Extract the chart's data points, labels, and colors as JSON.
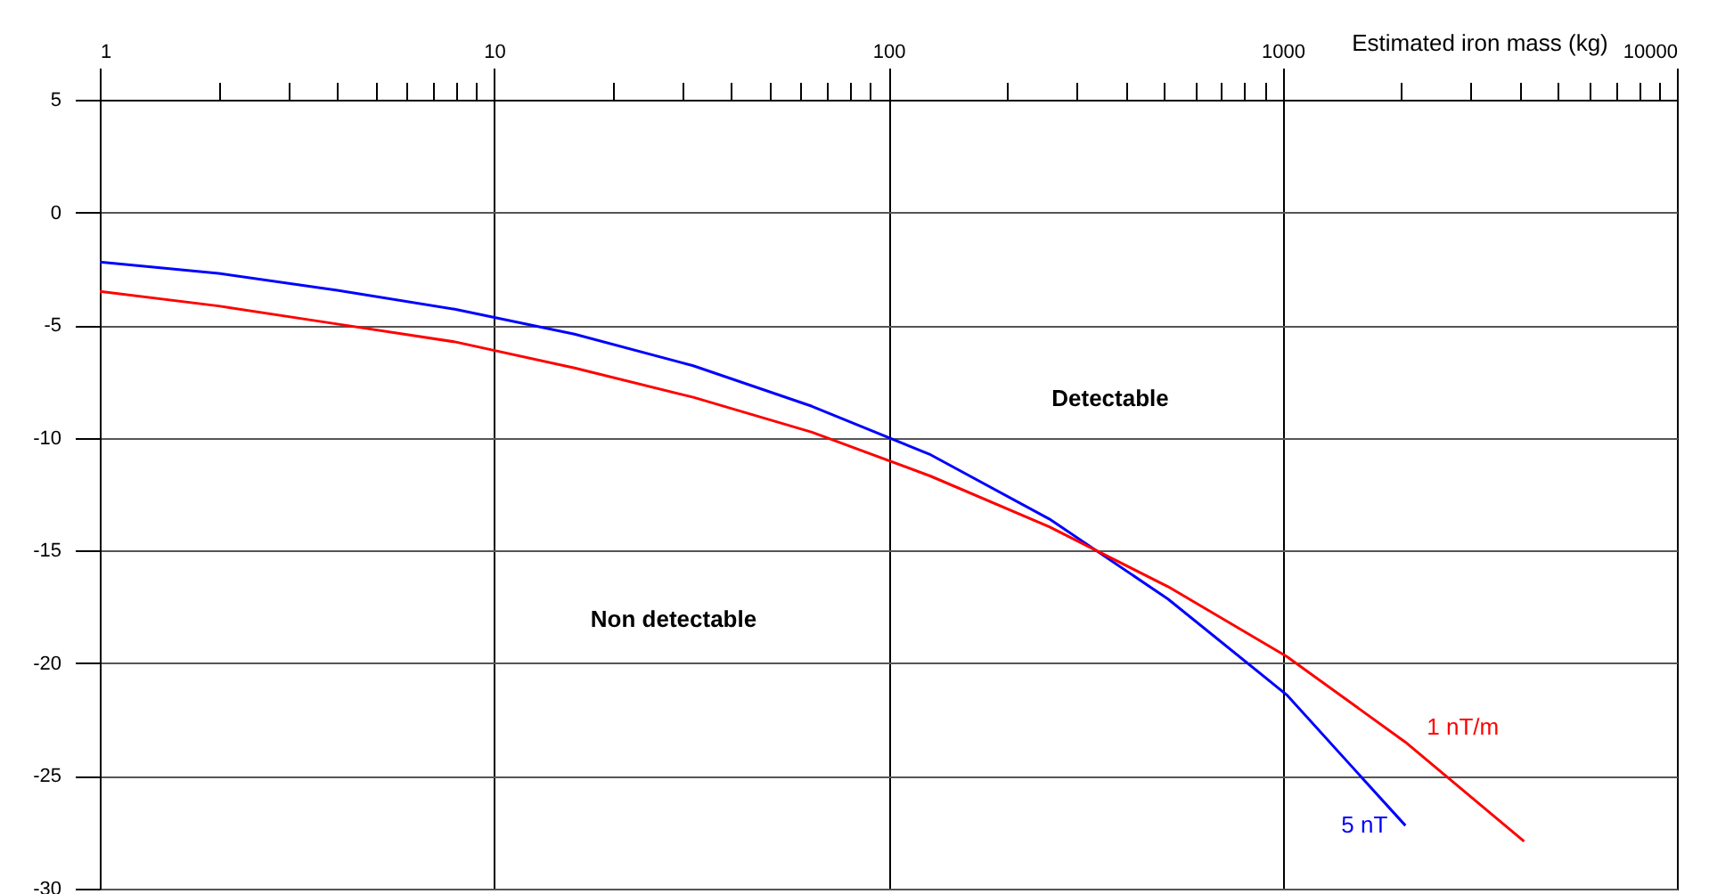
{
  "chart_data": {
    "type": "line",
    "xlabel": "Estimated iron mass (kg)",
    "log": "x",
    "xlim": [
      1,
      10000
    ],
    "xticks": [
      1,
      {
        "value": 2,
        "label": null
      },
      {
        "value": 3,
        "label": null
      },
      {
        "value": 4,
        "label": null
      },
      {
        "value": 5,
        "label": null
      },
      {
        "value": 6,
        "label": null
      },
      {
        "value": 7,
        "label": null
      },
      {
        "value": 8,
        "label": null
      },
      {
        "value": 9,
        "label": null
      },
      10,
      {
        "value": 20,
        "label": null
      },
      {
        "value": 30,
        "label": null
      },
      {
        "value": 40,
        "label": null
      },
      {
        "value": 50,
        "label": null
      },
      {
        "value": 60,
        "label": null
      },
      {
        "value": 70,
        "label": null
      },
      {
        "value": 80,
        "label": null
      },
      {
        "value": 90,
        "label": null
      },
      100,
      {
        "value": 200,
        "label": null
      },
      {
        "value": 300,
        "label": null
      },
      {
        "value": 400,
        "label": null
      },
      {
        "value": 500,
        "label": null
      },
      {
        "value": 600,
        "label": null
      },
      {
        "value": 700,
        "label": null
      },
      {
        "value": 800,
        "label": null
      },
      {
        "value": 900,
        "label": null
      },
      1000,
      {
        "value": 2000,
        "label": null
      },
      {
        "value": 3000,
        "label": null
      },
      {
        "value": 4000,
        "label": null
      },
      {
        "value": 5000,
        "label": null
      },
      {
        "value": 6000,
        "label": null
      },
      {
        "value": 7000,
        "label": null
      },
      {
        "value": 8000,
        "label": null
      },
      {
        "value": 9000,
        "label": null
      },
      10000
    ],
    "ylim": [
      -30,
      5
    ],
    "yticks": [
      -30,
      -25,
      -20,
      -15,
      -10,
      -5,
      0,
      5
    ],
    "grid": true,
    "legend": false,
    "marker": "none",
    "line_style": "solid",
    "annotations": [
      "Detectable",
      "Non detectable"
    ],
    "series": [
      {
        "name": "5 nT",
        "color": "#0000ff",
        "x": [
          1,
          2,
          4,
          8,
          16,
          32,
          64,
          128,
          256,
          512,
          1024,
          2048
        ],
        "values": [
          -2.2,
          -2.7,
          -3.45,
          -4.3,
          -5.4,
          -6.8,
          -8.6,
          -10.75,
          -13.6,
          -17.15,
          -21.4,
          -27.2
        ]
      },
      {
        "name": "1 nT/m",
        "color": "#ff0000",
        "x": [
          1,
          2,
          4,
          8,
          16,
          32,
          64,
          128,
          256,
          512,
          1024,
          2048,
          4096
        ],
        "values": [
          -3.5,
          -4.15,
          -4.95,
          -5.75,
          -6.9,
          -8.2,
          -9.75,
          -11.7,
          -13.95,
          -16.6,
          -19.7,
          -23.5,
          -27.9
        ]
      }
    ]
  }
}
